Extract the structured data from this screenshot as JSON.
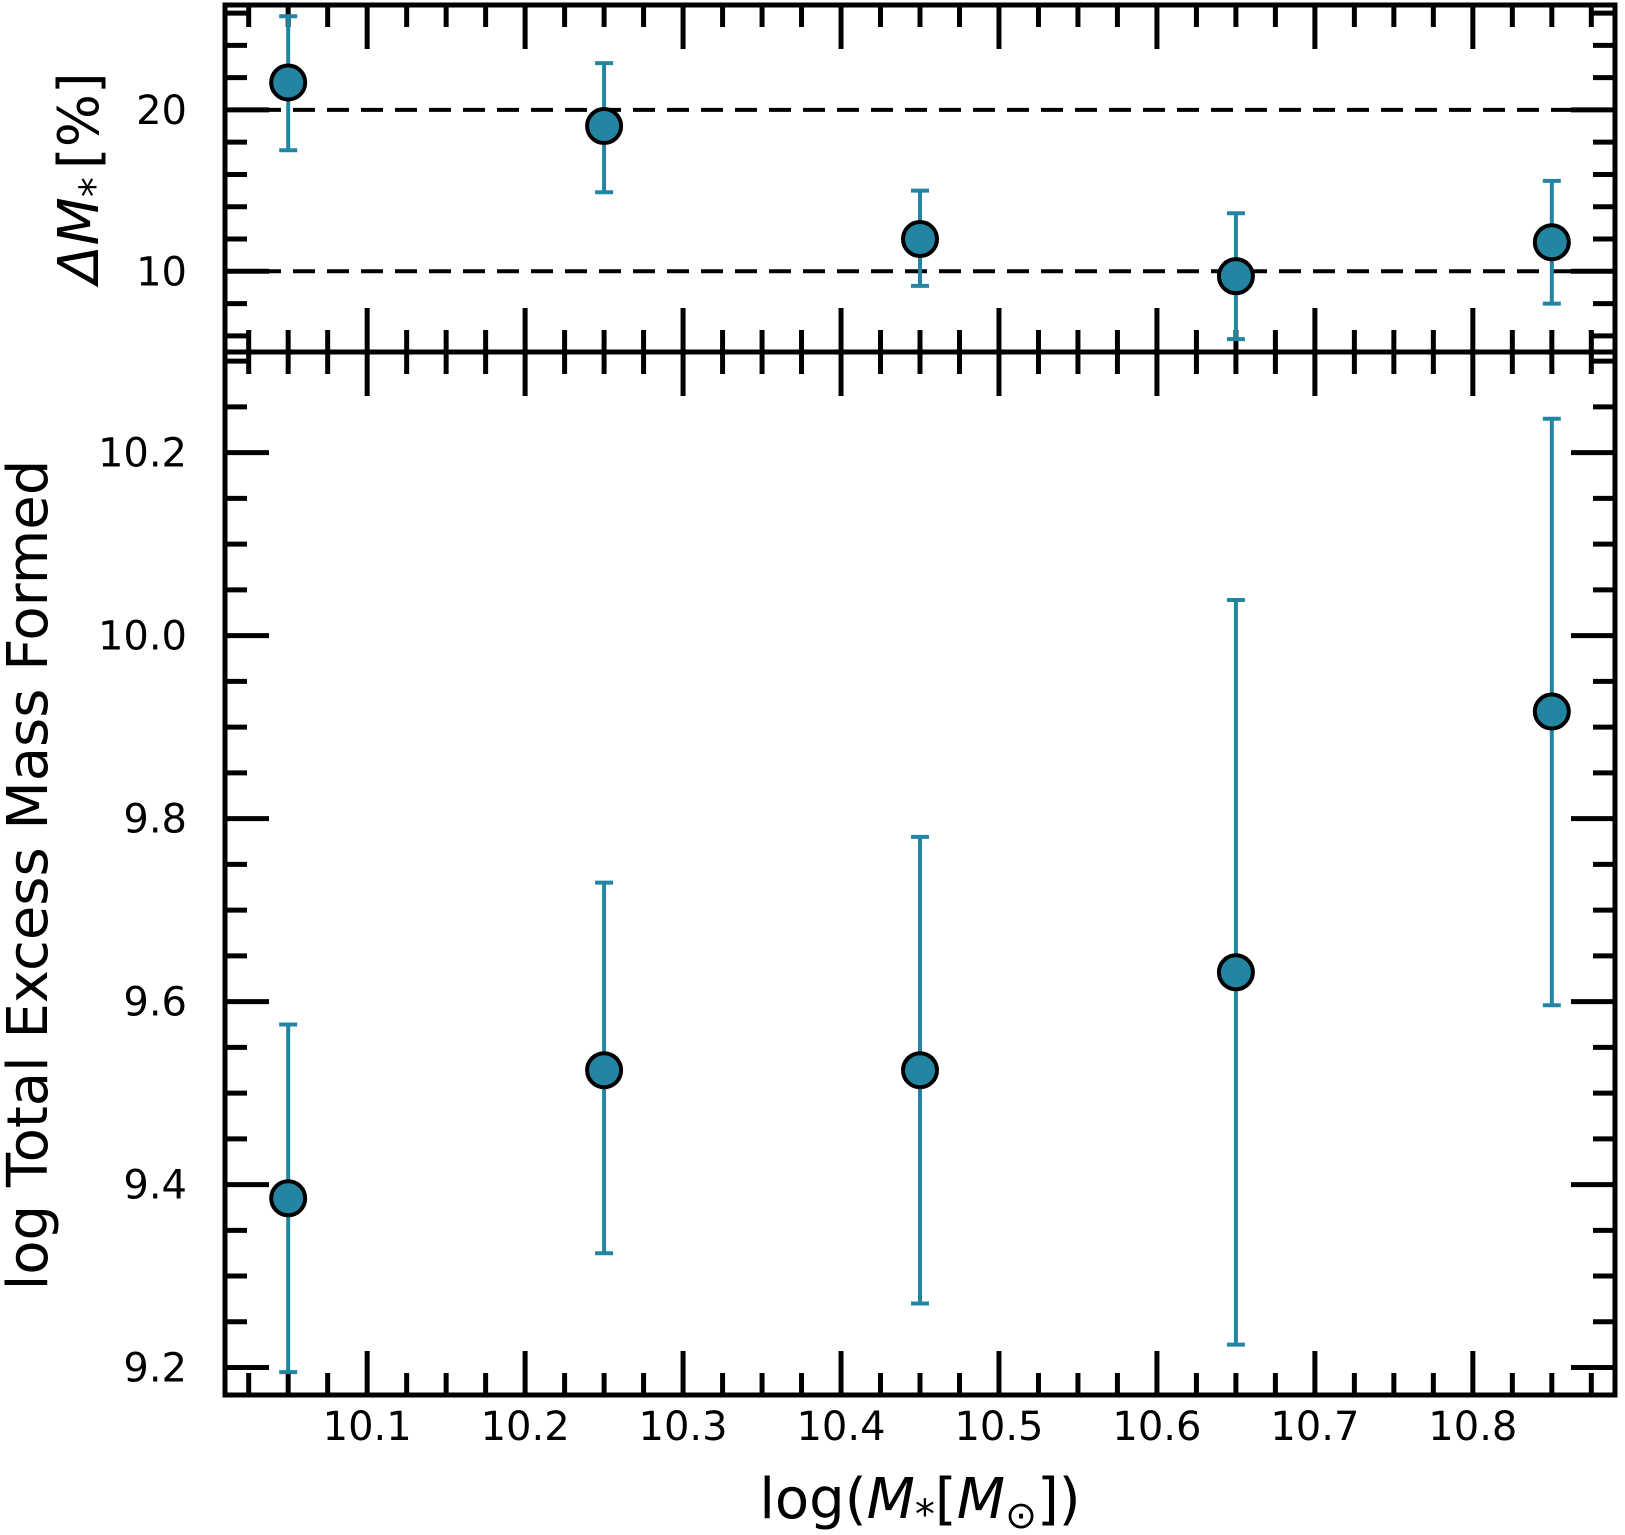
{
  "chart_data": [
    {
      "type": "scatter",
      "panel": "top",
      "x": [
        10.05,
        10.25,
        10.45,
        10.65,
        10.85
      ],
      "y": [
        21.7,
        19.0,
        12.0,
        9.7,
        11.8
      ],
      "yerr_low": [
        4.2,
        4.1,
        2.9,
        3.9,
        3.8
      ],
      "yerr_high": [
        4.1,
        3.9,
        3.0,
        3.9,
        3.8
      ],
      "ylabel_delta": "Δ",
      "ylabel_var": "M",
      "ylabel_sub": "*",
      "ylabel_unit": "[%]",
      "xlim": [
        10.01,
        10.89
      ],
      "ylim": [
        5.0,
        26.5
      ],
      "yticks": [
        10,
        20
      ],
      "ytick_labels": [
        "10",
        "20"
      ],
      "reference_lines": [
        10,
        20
      ],
      "marker_color": "#2385a2"
    },
    {
      "type": "scatter",
      "panel": "bottom",
      "x": [
        10.05,
        10.25,
        10.45,
        10.65,
        10.85
      ],
      "y": [
        9.385,
        9.525,
        9.525,
        9.632,
        9.917
      ],
      "yerr_low": [
        0.19,
        0.2,
        0.255,
        0.407,
        0.321
      ],
      "yerr_high": [
        0.19,
        0.205,
        0.255,
        0.407,
        0.32
      ],
      "ylabel": "log Total Excess Mass Formed",
      "xlabel_prefix": "log(",
      "xlabel_var": "M",
      "xlabel_sub": "*",
      "xlabel_open": "[",
      "xlabel_sun": "M",
      "xlabel_sun_sub": "⊙",
      "xlabel_close": "])",
      "xlim": [
        10.01,
        10.89
      ],
      "ylim": [
        9.17,
        10.31
      ],
      "xticks": [
        10.1,
        10.2,
        10.3,
        10.4,
        10.5,
        10.6,
        10.7,
        10.8
      ],
      "xtick_labels": [
        "10.1",
        "10.2",
        "10.3",
        "10.4",
        "10.5",
        "10.6",
        "10.7",
        "10.8"
      ],
      "yticks": [
        9.2,
        9.4,
        9.6,
        9.8,
        10.0,
        10.2
      ],
      "ytick_labels": [
        "9.2",
        "9.4",
        "9.6",
        "9.8",
        "10.0",
        "10.2"
      ],
      "marker_color": "#2385a2"
    }
  ]
}
